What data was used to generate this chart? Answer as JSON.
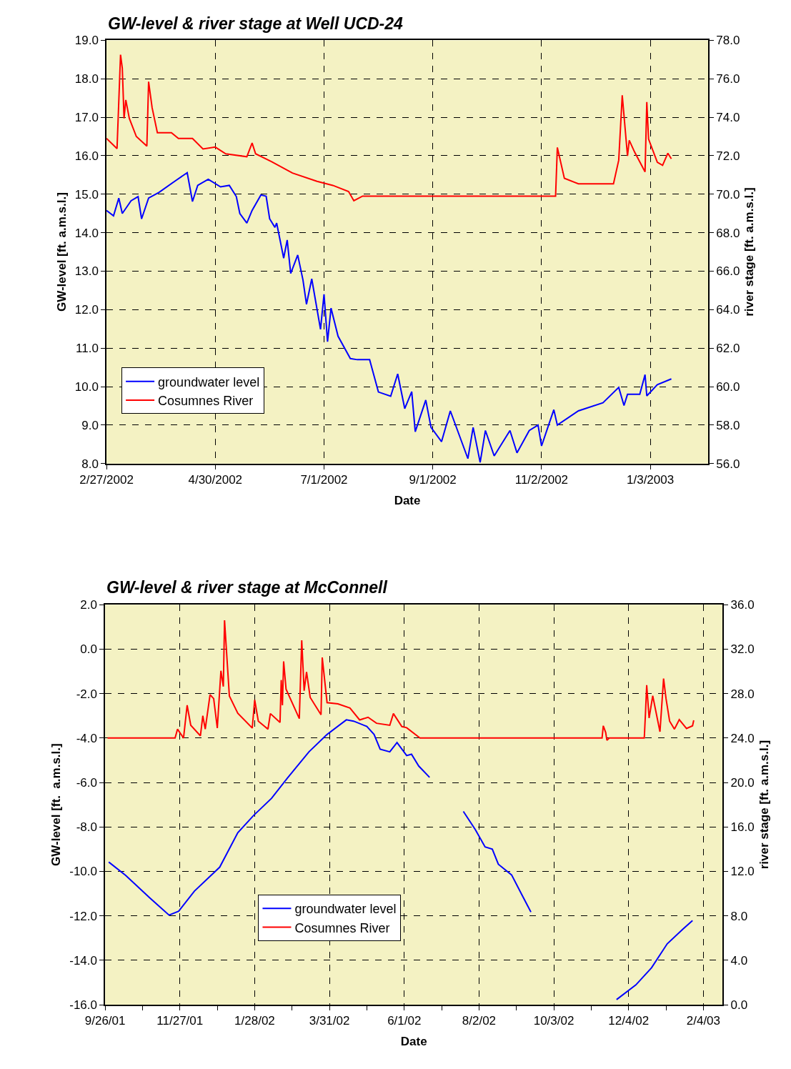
{
  "chart_data": [
    {
      "type": "line",
      "title": "GW-level & river stage at Well UCD-24",
      "xlabel": "Date",
      "ylabel": "GW-level [ft. a.m.s.l.]",
      "y2label": "river stage [ft. a.m.s.l.]",
      "grid": true,
      "legend": "bottom left",
      "xlim": [
        "2002-02-27",
        "2003-02-05"
      ],
      "xticks": [
        {
          "value": "2002-02-27",
          "label": "2/27/2002"
        },
        {
          "value": "2002-04-30",
          "label": "4/30/2002"
        },
        {
          "value": "2002-07-01",
          "label": "7/1/2002"
        },
        {
          "value": "2002-09-01",
          "label": "9/1/2002"
        },
        {
          "value": "2002-11-02",
          "label": "11/2/2002"
        },
        {
          "value": "2003-01-03",
          "label": "1/3/2003"
        }
      ],
      "ylim": [
        8,
        19
      ],
      "yticks": [
        {
          "value": 8,
          "label": "8.0"
        },
        {
          "value": 9,
          "label": "9.0"
        },
        {
          "value": 10,
          "label": "10.0"
        },
        {
          "value": 11,
          "label": "11.0"
        },
        {
          "value": 12,
          "label": "12.0"
        },
        {
          "value": 13,
          "label": "13.0"
        },
        {
          "value": 14,
          "label": "14.0"
        },
        {
          "value": 15,
          "label": "15.0"
        },
        {
          "value": 16,
          "label": "16.0"
        },
        {
          "value": 17,
          "label": "17.0"
        },
        {
          "value": 18,
          "label": "18.0"
        },
        {
          "value": 19,
          "label": "19.0"
        }
      ],
      "y2lim": [
        56,
        78
      ],
      "y2ticks": [
        {
          "value": 56,
          "label": "56.0"
        },
        {
          "value": 58,
          "label": "58.0"
        },
        {
          "value": 60,
          "label": "60.0"
        },
        {
          "value": 62,
          "label": "62.0"
        },
        {
          "value": 64,
          "label": "64.0"
        },
        {
          "value": 66,
          "label": "66.0"
        },
        {
          "value": 68,
          "label": "68.0"
        },
        {
          "value": 70,
          "label": "70.0"
        },
        {
          "value": 72,
          "label": "72.0"
        },
        {
          "value": 74,
          "label": "74.0"
        },
        {
          "value": 76,
          "label": "76.0"
        },
        {
          "value": 78,
          "label": "78.0"
        }
      ],
      "series": [
        {
          "name": "groundwater level",
          "color": "#0000ff",
          "x": [
            "2002-02-27",
            "2002-03-03",
            "2002-03-06",
            "2002-03-08",
            "2002-03-13",
            "2002-03-17",
            "2002-03-19",
            "2002-03-23",
            "2002-03-29",
            "2002-04-07",
            "2002-04-14",
            "2002-04-17",
            "2002-04-20",
            "2002-04-26",
            "2002-05-03",
            "2002-05-08",
            "2002-05-12",
            "2002-05-14",
            "2002-05-18",
            "2002-05-21",
            "2002-05-26",
            "2002-05-29",
            "2002-05-31",
            "2002-06-03",
            "2002-06-04",
            "2002-06-08",
            "2002-06-10",
            "2002-06-12",
            "2002-06-16",
            "2002-06-19",
            "2002-06-21",
            "2002-06-24",
            "2002-06-29",
            "2002-07-01",
            "2002-07-03",
            "2002-07-05",
            "2002-07-09",
            "2002-07-16",
            "2002-07-20",
            "2002-07-27",
            "2002-08-01",
            "2002-08-08",
            "2002-08-12",
            "2002-08-16",
            "2002-08-20",
            "2002-08-22",
            "2002-08-28",
            "2002-08-31",
            "2002-09-06",
            "2002-09-11",
            "2002-09-21",
            "2002-09-24",
            "2002-09-28",
            "2002-10-01",
            "2002-10-06",
            "2002-10-15",
            "2002-10-19",
            "2002-10-26",
            "2002-10-31",
            "2002-11-02",
            "2002-11-09",
            "2002-11-11",
            "2002-11-23",
            "2002-12-07",
            "2002-12-16",
            "2002-12-19",
            "2002-12-21",
            "2002-12-28",
            "2002-12-31",
            "2003-01-01",
            "2003-01-07",
            "2003-01-15"
          ],
          "values": [
            14.58,
            14.44,
            14.9,
            14.5,
            14.83,
            14.94,
            14.36,
            14.9,
            15.05,
            15.34,
            15.56,
            14.81,
            15.23,
            15.39,
            15.19,
            15.23,
            14.94,
            14.5,
            14.25,
            14.58,
            14.98,
            14.95,
            14.36,
            14.14,
            14.25,
            13.34,
            13.81,
            12.94,
            13.42,
            12.77,
            12.14,
            12.8,
            11.49,
            12.4,
            11.17,
            12.04,
            11.31,
            10.73,
            10.7,
            10.7,
            9.86,
            9.75,
            10.33,
            9.43,
            9.87,
            8.83,
            9.65,
            8.94,
            8.57,
            9.37,
            8.13,
            8.94,
            8.03,
            8.86,
            8.2,
            8.86,
            8.28,
            8.86,
            9.0,
            8.46,
            9.4,
            9.0,
            9.37,
            9.58,
            9.98,
            9.51,
            9.8,
            9.8,
            10.31,
            9.76,
            10.05,
            10.2
          ]
        },
        {
          "name": "Cosumnes River",
          "color": "#ff0000",
          "axis": "y2",
          "x": [
            "2002-02-27",
            "2002-03-05",
            "2002-03-07",
            "2002-03-08",
            "2002-03-09",
            "2002-03-10",
            "2002-03-12",
            "2002-03-16",
            "2002-03-22",
            "2002-03-23",
            "2002-03-25",
            "2002-03-28",
            "2002-04-05",
            "2002-04-09",
            "2002-04-17",
            "2002-04-23",
            "2002-04-30",
            "2002-05-06",
            "2002-05-18",
            "2002-05-21",
            "2002-05-23",
            "2002-06-01",
            "2002-06-13",
            "2002-06-27",
            "2002-07-06",
            "2002-07-15",
            "2002-07-18",
            "2002-07-23",
            "2002-11-10",
            "2002-11-11",
            "2002-11-15",
            "2002-11-23",
            "2002-12-13",
            "2002-12-16",
            "2002-12-18",
            "2002-12-21",
            "2002-12-22",
            "2002-12-25",
            "2002-12-31",
            "2003-01-01",
            "2003-01-02",
            "2003-01-07",
            "2003-01-10",
            "2003-01-13",
            "2003-01-15"
          ],
          "values": [
            72.9,
            72.37,
            77.25,
            76.55,
            73.94,
            74.9,
            73.94,
            73.0,
            72.5,
            75.85,
            74.5,
            73.2,
            73.2,
            72.9,
            72.9,
            72.35,
            72.45,
            72.1,
            71.95,
            72.66,
            72.1,
            71.7,
            71.1,
            70.67,
            70.46,
            70.14,
            69.66,
            69.9,
            69.9,
            72.43,
            70.83,
            70.54,
            70.54,
            71.77,
            75.14,
            71.99,
            72.8,
            72.2,
            71.16,
            74.79,
            72.87,
            71.66,
            71.5,
            72.13,
            71.84
          ]
        }
      ]
    },
    {
      "type": "line",
      "title": "GW-level & river stage at McConnell",
      "xlabel": "Date",
      "ylabel": "GW-level [ft.  a.m.s.l.]",
      "y2label": "river stage [ft. a.m.s.l.]",
      "grid": true,
      "legend": "bottom",
      "xlim": [
        "2001-09-26",
        "2003-02-20"
      ],
      "xticks": [
        {
          "value": "2001-09-26",
          "label": "9/26/01"
        },
        {
          "value": "2001-10-27",
          "label": null
        },
        {
          "value": "2001-11-27",
          "label": "11/27/01"
        },
        {
          "value": "2001-12-28",
          "label": null
        },
        {
          "value": "2002-01-28",
          "label": "1/28/02"
        },
        {
          "value": "2002-02-28",
          "label": null
        },
        {
          "value": "2002-03-31",
          "label": "3/31/02"
        },
        {
          "value": "2002-05-01",
          "label": null
        },
        {
          "value": "2002-06-01",
          "label": "6/1/02"
        },
        {
          "value": "2002-07-02",
          "label": null
        },
        {
          "value": "2002-08-02",
          "label": "8/2/02"
        },
        {
          "value": "2002-09-02",
          "label": null
        },
        {
          "value": "2002-10-03",
          "label": "10/3/02"
        },
        {
          "value": "2002-11-03",
          "label": null
        },
        {
          "value": "2002-12-04",
          "label": "12/4/02"
        },
        {
          "value": "2003-01-04",
          "label": null
        },
        {
          "value": "2003-02-04",
          "label": "2/4/03"
        }
      ],
      "ylim": [
        -16,
        2
      ],
      "yticks": [
        {
          "value": -16,
          "label": "-16.0"
        },
        {
          "value": -14,
          "label": "-14.0"
        },
        {
          "value": -12,
          "label": "-12.0"
        },
        {
          "value": -10,
          "label": "-10.0"
        },
        {
          "value": -8,
          "label": "-8.0"
        },
        {
          "value": -6,
          "label": "-6.0"
        },
        {
          "value": -4,
          "label": "-4.0"
        },
        {
          "value": -2,
          "label": "-2.0"
        },
        {
          "value": 0,
          "label": "0.0"
        },
        {
          "value": 2,
          "label": "2.0"
        }
      ],
      "y2lim": [
        0,
        36
      ],
      "y2ticks": [
        {
          "value": 0,
          "label": "0.0"
        },
        {
          "value": 4,
          "label": "4.0"
        },
        {
          "value": 8,
          "label": "8.0"
        },
        {
          "value": 12,
          "label": "12.0"
        },
        {
          "value": 16,
          "label": "16.0"
        },
        {
          "value": 20,
          "label": "20.0"
        },
        {
          "value": 24,
          "label": "24.0"
        },
        {
          "value": 28,
          "label": "28.0"
        },
        {
          "value": 32,
          "label": "32.0"
        },
        {
          "value": 36,
          "label": "36.0"
        }
      ],
      "series": [
        {
          "name": "groundwater level",
          "color": "#0000ff",
          "x": [
            "2001-09-29",
            "2001-10-13",
            "2001-11-02",
            "2001-11-18",
            "2001-11-26",
            "2001-12-09",
            "2001-12-30",
            "2002-01-14",
            "2002-01-27",
            "2002-02-11",
            "2002-02-24",
            "2002-03-14",
            "2002-03-29",
            "2002-04-14",
            "2002-04-20",
            "2002-05-01",
            "2002-05-07",
            "2002-05-12",
            "2002-05-20",
            "2002-05-26",
            "2002-06-03",
            "2002-06-07",
            "2002-06-13",
            "2002-06-22",
            "2002-07-05",
            "2002-07-20",
            "2002-07-30",
            "2002-08-07",
            "2002-08-13",
            "2002-08-18",
            "2002-08-29",
            "2002-09-06",
            "2002-09-14",
            "2002-10-20",
            "2002-11-24",
            "2002-12-10",
            "2002-12-23",
            "2003-01-05",
            "2003-01-18",
            "2003-01-26"
          ],
          "values": [
            -9.58,
            -10.18,
            -11.19,
            -11.97,
            -11.79,
            -10.89,
            -9.81,
            -8.26,
            -7.49,
            -6.71,
            -5.81,
            -4.62,
            -3.84,
            -3.18,
            -3.24,
            -3.48,
            -3.84,
            -4.5,
            -4.62,
            -4.2,
            -4.79,
            -4.73,
            -5.26,
            -5.77,
            null,
            -7.3,
            -8.13,
            -8.9,
            -9.0,
            -9.68,
            -10.16,
            -11.0,
            -11.83,
            null,
            -15.77,
            -15.11,
            -14.34,
            -13.26,
            -12.6,
            -12.21
          ]
        },
        {
          "name": "Cosumnes River",
          "color": "#ff0000",
          "axis": "y2",
          "x": [
            "2001-09-28",
            "2001-11-23",
            "2001-11-25",
            "2001-11-30",
            "2001-12-03",
            "2001-12-06",
            "2001-12-14",
            "2001-12-16",
            "2001-12-18",
            "2001-12-22",
            "2001-12-25",
            "2001-12-28",
            "2001-12-31",
            "2002-01-02",
            "2002-01-03",
            "2002-01-07",
            "2002-01-14",
            "2002-01-26",
            "2002-01-28",
            "2002-01-31",
            "2002-02-08",
            "2002-02-10",
            "2002-02-18",
            "2002-02-19",
            "2002-02-20",
            "2002-02-21",
            "2002-02-23",
            "2002-03-06",
            "2002-03-08",
            "2002-03-10",
            "2002-03-12",
            "2002-03-15",
            "2002-03-24",
            "2002-03-25",
            "2002-03-29",
            "2002-04-07",
            "2002-04-17",
            "2002-04-25",
            "2002-05-02",
            "2002-05-09",
            "2002-05-20",
            "2002-05-23",
            "2002-05-30",
            "2002-06-03",
            "2002-06-14",
            "2002-11-12",
            "2002-11-13",
            "2002-11-15",
            "2002-11-16",
            "2002-11-18",
            "2002-12-17",
            "2002-12-18",
            "2002-12-19",
            "2002-12-21",
            "2002-12-24",
            "2002-12-30",
            "2003-01-02",
            "2003-01-04",
            "2003-01-07",
            "2003-01-11",
            "2003-01-15",
            "2003-01-21",
            "2003-01-26",
            "2003-01-27"
          ],
          "values": [
            24.0,
            24.0,
            24.8,
            24.0,
            26.95,
            25.15,
            24.2,
            26.0,
            24.8,
            27.9,
            27.55,
            24.9,
            30.05,
            28.63,
            34.6,
            27.78,
            26.23,
            24.9,
            27.43,
            25.52,
            24.8,
            26.2,
            25.4,
            29.22,
            26.95,
            30.9,
            28.4,
            25.75,
            32.8,
            28.25,
            29.94,
            27.66,
            26.1,
            31.25,
            27.19,
            27.07,
            26.7,
            25.63,
            25.87,
            25.33,
            25.15,
            26.2,
            25.03,
            24.93,
            24.0,
            24.0,
            25.1,
            24.5,
            23.8,
            24.0,
            24.0,
            26.25,
            28.76,
            25.8,
            27.8,
            24.57,
            29.35,
            27.56,
            25.52,
            24.8,
            25.65,
            24.86,
            25.1,
            25.6
          ]
        }
      ]
    }
  ]
}
